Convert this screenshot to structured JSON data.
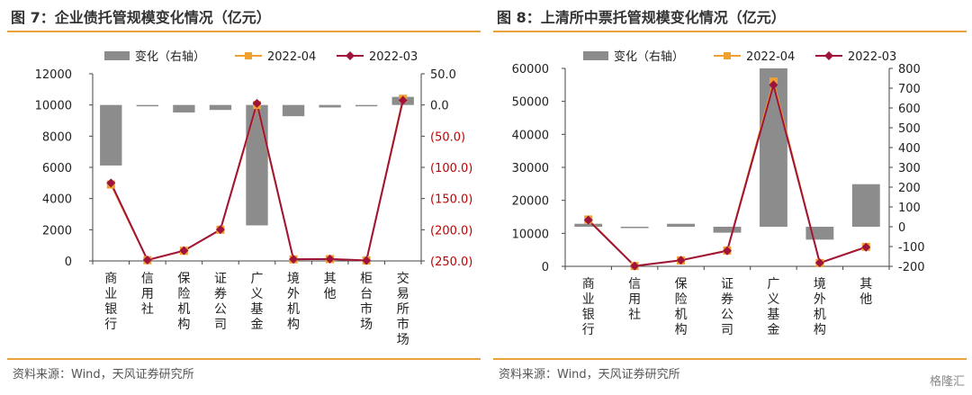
{
  "panels": [
    {
      "title": "图 7：企业债托管规模变化情况（亿元）",
      "source": "资料来源：Wind，天风证券研究所"
    },
    {
      "title": "图 8：上清所中票托管规模变化情况（亿元）",
      "source": "资料来源：Wind，天风证券研究所"
    }
  ],
  "watermark": "格隆汇",
  "colors": {
    "bar": "#8C8C8C",
    "line_2022_04": "#F0A030",
    "line_2022_03": "#A0143C",
    "rule": "#E8A33D",
    "red_tick": "#C00000"
  },
  "chart_data": [
    {
      "type": "bar+line",
      "title": "图 7：企业债托管规模变化情况（亿元）",
      "legend": [
        "变化（右轴）",
        "2022-04",
        "2022-03"
      ],
      "legend_position": "top",
      "categories": [
        "商业银行",
        "信用社",
        "保险机构",
        "证券公司",
        "广义基金",
        "境外机构",
        "其他",
        "柜台市场",
        "交易所市场"
      ],
      "series": [
        {
          "name": "变化（右轴）",
          "type": "bar",
          "axis": "right",
          "values": [
            -97,
            -2,
            -12,
            -8,
            -193,
            -18,
            -4,
            -1,
            13
          ]
        },
        {
          "name": "2022-04",
          "type": "line",
          "axis": "left",
          "values": [
            4900,
            50,
            650,
            2000,
            10000,
            100,
            120,
            30,
            10400
          ]
        },
        {
          "name": "2022-03",
          "type": "line",
          "axis": "left",
          "values": [
            5000,
            60,
            660,
            2010,
            10100,
            110,
            125,
            30,
            10300
          ]
        }
      ],
      "left_axis": {
        "min": 0,
        "max": 12000,
        "ticks": [
          "0",
          "2000",
          "4000",
          "6000",
          "8000",
          "10000",
          "12000"
        ]
      },
      "right_axis": {
        "min": -250,
        "max": 50,
        "ticks": [
          "(250.0)",
          "(200.0)",
          "(150.0)",
          "(100.0)",
          "(50.0)",
          "0.0",
          "50.0"
        ]
      },
      "grid": false
    },
    {
      "type": "bar+line",
      "title": "图 8：上清所中票托管规模变化情况（亿元）",
      "legend": [
        "变化（右轴）",
        "2022-04",
        "2022-03"
      ],
      "legend_position": "top",
      "categories": [
        "商业银行",
        "信用社",
        "保险机构",
        "证券公司",
        "广义基金",
        "境外机构",
        "其他"
      ],
      "series": [
        {
          "name": "变化（右轴）",
          "type": "bar",
          "axis": "right",
          "values": [
            15,
            0,
            15,
            -30,
            800,
            -65,
            215
          ]
        },
        {
          "name": "2022-04",
          "type": "line",
          "axis": "left",
          "values": [
            14200,
            100,
            1800,
            4800,
            56000,
            1000,
            5900
          ]
        },
        {
          "name": "2022-03",
          "type": "line",
          "axis": "left",
          "values": [
            14000,
            100,
            1850,
            4700,
            55000,
            1050,
            5800
          ]
        }
      ],
      "left_axis": {
        "min": 0,
        "max": 60000,
        "ticks": [
          "0",
          "10000",
          "20000",
          "30000",
          "40000",
          "50000",
          "60000"
        ]
      },
      "right_axis": {
        "min": -200,
        "max": 800,
        "ticks": [
          "-200",
          "-100",
          "0",
          "100",
          "200",
          "300",
          "400",
          "500",
          "600",
          "700",
          "800"
        ]
      },
      "grid": false
    }
  ]
}
